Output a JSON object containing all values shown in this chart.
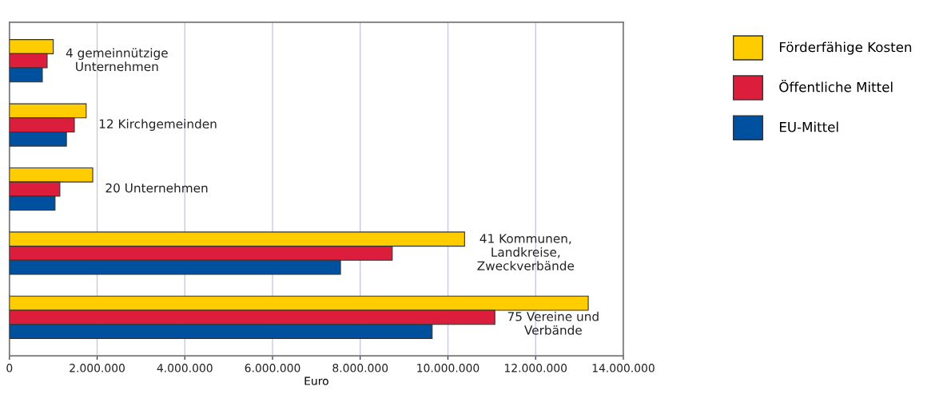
{
  "chart_data": {
    "type": "bar",
    "orientation": "horizontal",
    "categories": [
      "4 gemeinnützige\nUnternehmen",
      "12 Kirchgemeinden",
      "20 Unternehmen",
      "41 Kommunen,\nLandkreise,\nZweckverbände",
      "75 Vereine und\nVerbände"
    ],
    "series": [
      {
        "name": "Förderfähige Kosten",
        "color": "#ffcc00",
        "values": [
          1000000,
          1750000,
          1900000,
          10380000,
          13200000
        ]
      },
      {
        "name": "Öffentliche Mittel",
        "color": "#dc1e3c",
        "values": [
          860000,
          1480000,
          1150000,
          8730000,
          11070000
        ]
      },
      {
        "name": "EU-Mittel",
        "color": "#0050a0",
        "values": [
          750000,
          1300000,
          1040000,
          7550000,
          9640000
        ]
      }
    ],
    "xlabel": "Euro",
    "xlim": [
      0,
      14000000
    ],
    "xticks": [
      0,
      {
        "value": 2000000,
        "label": "2.000.000"
      },
      {
        "value": 4000000,
        "label": "4.000.000"
      },
      {
        "value": 6000000,
        "label": "6.000.000"
      },
      {
        "value": 8000000,
        "label": "8.000.000"
      },
      {
        "value": 10000000,
        "label": "10.000.000"
      },
      {
        "value": 12000000,
        "label": "12.000.000"
      },
      {
        "value": 14000000,
        "label": "14.000.000"
      }
    ],
    "grid": "x",
    "legend": "right",
    "tick_labels": "x"
  }
}
